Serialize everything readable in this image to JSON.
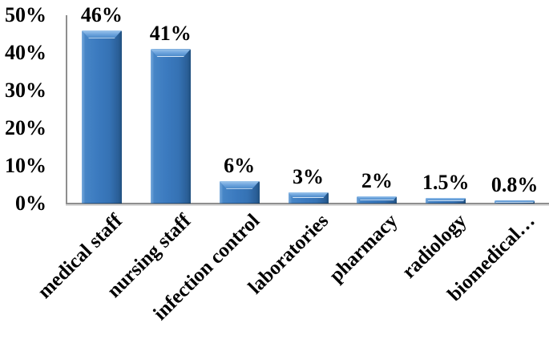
{
  "chart_data": {
    "type": "bar",
    "title": "",
    "xlabel": "",
    "ylabel": "",
    "categories": [
      "medical staff",
      "nursing staff",
      "infection control",
      "laboratories",
      "pharmacy",
      "radiology",
      "biomedical…"
    ],
    "values": [
      46,
      41,
      6,
      3,
      2,
      1.5,
      0.8
    ],
    "data_labels": [
      "46%",
      "41%",
      "6%",
      "3%",
      "2%",
      "1.5%",
      "0.8%"
    ],
    "yticks": [
      "0%",
      "10%",
      "20%",
      "30%",
      "40%",
      "50%"
    ],
    "ylim": [
      0,
      50
    ],
    "grid": false,
    "legend": false,
    "x_label_rotation_deg": -45,
    "colors": {
      "bar_face": "#3b7abf",
      "bar_highlight": "#9ec6ec",
      "bar_shadow": "#20507f",
      "axis_line": "#8e8e8e",
      "text": "#000000",
      "background": "#ffffff"
    }
  }
}
